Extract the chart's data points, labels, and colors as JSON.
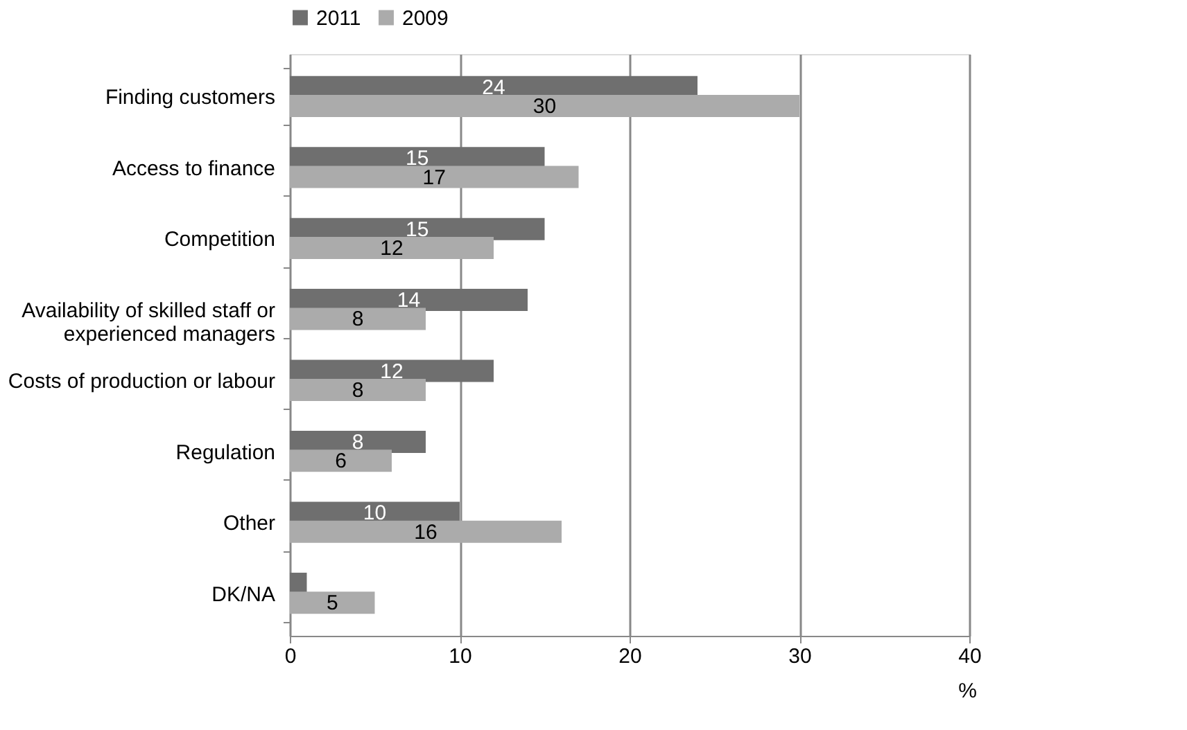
{
  "chart_data": {
    "type": "bar",
    "orientation": "horizontal",
    "categories": [
      "Finding customers",
      "Access to finance",
      "Competition",
      "Availability of skilled staff or experienced managers",
      "Costs of production or labour",
      "Regulation",
      "Other",
      "DK/NA"
    ],
    "series": [
      {
        "name": "2011",
        "color": "#6f6f6f",
        "values": [
          24,
          15,
          15,
          14,
          12,
          8,
          10,
          1
        ],
        "value_labels": [
          "24",
          "15",
          "15",
          "14",
          "12",
          "8",
          "10",
          null
        ]
      },
      {
        "name": "2009",
        "color": "#ababab",
        "values": [
          30,
          17,
          12,
          8,
          8,
          6,
          16,
          5
        ],
        "value_labels": [
          "30",
          "17",
          "12",
          "8",
          "8",
          "6",
          "16",
          "5"
        ]
      }
    ],
    "xlim": [
      0,
      40
    ],
    "xticks": [
      0,
      10,
      20,
      30,
      40
    ],
    "xlabel": "%",
    "grid": "x",
    "legend": "top"
  }
}
